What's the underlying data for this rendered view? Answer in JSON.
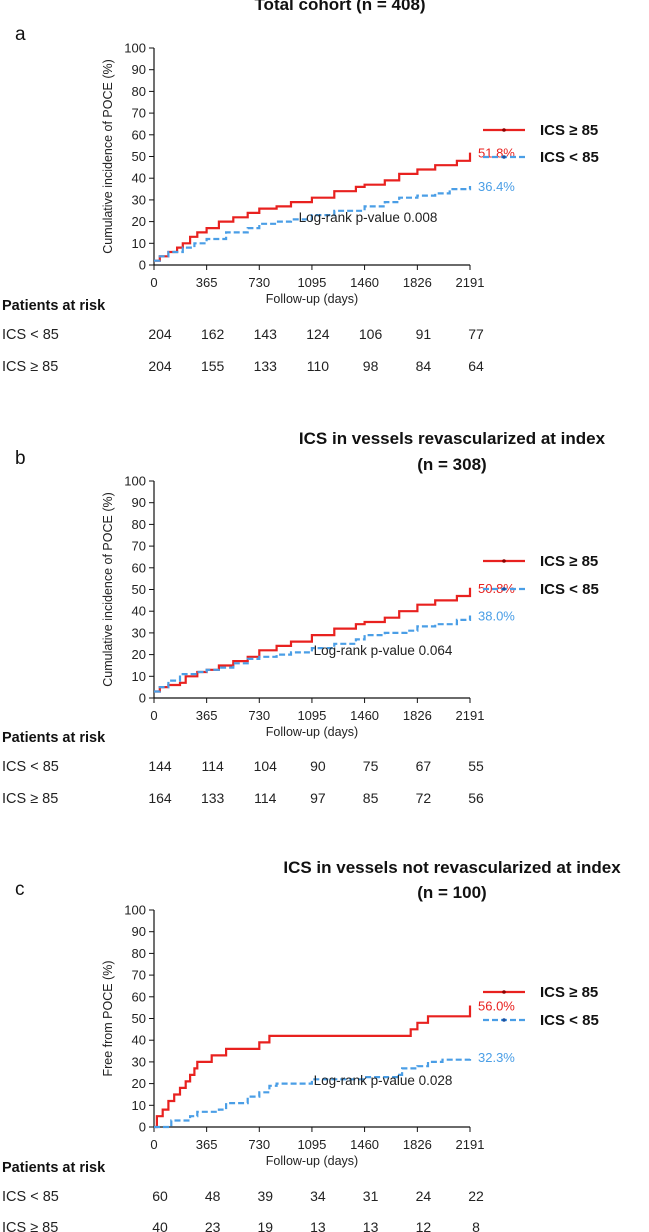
{
  "chart_data": [
    {
      "type": "line",
      "panel": "a",
      "title_lines": [
        "Total cohort (n = 408)"
      ],
      "xlabel": "Follow-up (days)",
      "ylabel": "Cumulative incidence of POCE (%)",
      "x_ticks": [
        0,
        365,
        730,
        1095,
        1460,
        1826,
        2191
      ],
      "y_ticks": [
        0,
        10,
        20,
        30,
        40,
        50,
        60,
        70,
        80,
        90,
        100
      ],
      "xlim": [
        0,
        2191
      ],
      "ylim": [
        0,
        100
      ],
      "annotation": "Log-rank p-value 0.008",
      "series": [
        {
          "name": "ICS ≥ 85",
          "color": "#e8211f",
          "dash": "solid",
          "end_label": "51.8%",
          "points": [
            [
              0,
              2
            ],
            [
              40,
              4
            ],
            [
              100,
              6
            ],
            [
              160,
              8
            ],
            [
              200,
              10
            ],
            [
              250,
              13
            ],
            [
              300,
              15
            ],
            [
              365,
              17
            ],
            [
              450,
              20
            ],
            [
              550,
              22
            ],
            [
              650,
              24
            ],
            [
              730,
              26
            ],
            [
              850,
              27
            ],
            [
              950,
              29
            ],
            [
              1095,
              31
            ],
            [
              1250,
              34
            ],
            [
              1400,
              36
            ],
            [
              1460,
              37
            ],
            [
              1600,
              39
            ],
            [
              1700,
              42
            ],
            [
              1826,
              44
            ],
            [
              1950,
              46
            ],
            [
              2100,
              48
            ],
            [
              2191,
              51.8
            ]
          ]
        },
        {
          "name": "ICS < 85",
          "color": "#4a9ee6",
          "dash": "dash",
          "end_label": "36.4%",
          "points": [
            [
              0,
              2
            ],
            [
              40,
              4
            ],
            [
              100,
              6
            ],
            [
              200,
              8
            ],
            [
              280,
              10
            ],
            [
              365,
              12
            ],
            [
              500,
              15
            ],
            [
              650,
              17
            ],
            [
              730,
              19
            ],
            [
              850,
              20
            ],
            [
              950,
              21
            ],
            [
              1095,
              23
            ],
            [
              1250,
              25
            ],
            [
              1460,
              27
            ],
            [
              1600,
              29
            ],
            [
              1700,
              31
            ],
            [
              1826,
              32
            ],
            [
              1950,
              33
            ],
            [
              2050,
              35
            ],
            [
              2191,
              36.4
            ]
          ]
        }
      ],
      "risk_table": {
        "header": "Patients at risk",
        "rows": [
          {
            "label": "ICS < 85",
            "values": [
              "204",
              "162",
              "143",
              "124",
              "106",
              "91",
              "77"
            ]
          },
          {
            "label": "ICS ≥ 85",
            "values": [
              "204",
              "155",
              "133",
              "110",
              "98",
              "84",
              "64"
            ]
          }
        ]
      }
    },
    {
      "type": "line",
      "panel": "b",
      "title_lines": [
        "ICS in vessels revascularized at index",
        "(n = 308)"
      ],
      "xlabel": "Follow-up (days)",
      "ylabel": "Cumulative incidence of POCE (%)",
      "x_ticks": [
        0,
        365,
        730,
        1095,
        1460,
        1826,
        2191
      ],
      "y_ticks": [
        0,
        10,
        20,
        30,
        40,
        50,
        60,
        70,
        80,
        90,
        100
      ],
      "xlim": [
        0,
        2191
      ],
      "ylim": [
        0,
        100
      ],
      "annotation": "Log-rank p-value 0.064",
      "series": [
        {
          "name": "ICS ≥ 85",
          "color": "#e8211f",
          "dash": "solid",
          "end_label": "50.8%",
          "points": [
            [
              0,
              3
            ],
            [
              40,
              5
            ],
            [
              100,
              6
            ],
            [
              180,
              7
            ],
            [
              220,
              10
            ],
            [
              300,
              12
            ],
            [
              365,
              13
            ],
            [
              450,
              15
            ],
            [
              550,
              17
            ],
            [
              650,
              19
            ],
            [
              730,
              22
            ],
            [
              850,
              24
            ],
            [
              950,
              26
            ],
            [
              1095,
              29
            ],
            [
              1250,
              32
            ],
            [
              1400,
              34
            ],
            [
              1460,
              35
            ],
            [
              1600,
              37
            ],
            [
              1700,
              40
            ],
            [
              1826,
              43
            ],
            [
              1950,
              45
            ],
            [
              2100,
              47
            ],
            [
              2191,
              50.8
            ]
          ]
        },
        {
          "name": "ICS < 85",
          "color": "#4a9ee6",
          "dash": "dash",
          "end_label": "38.0%",
          "points": [
            [
              0,
              3
            ],
            [
              40,
              5
            ],
            [
              100,
              8
            ],
            [
              180,
              11
            ],
            [
              300,
              12
            ],
            [
              365,
              13
            ],
            [
              450,
              14
            ],
            [
              550,
              16
            ],
            [
              650,
              18
            ],
            [
              730,
              19
            ],
            [
              850,
              20
            ],
            [
              950,
              21
            ],
            [
              1095,
              23
            ],
            [
              1250,
              25
            ],
            [
              1400,
              27
            ],
            [
              1460,
              29
            ],
            [
              1600,
              30
            ],
            [
              1750,
              31
            ],
            [
              1826,
              33
            ],
            [
              1950,
              34
            ],
            [
              2100,
              36
            ],
            [
              2191,
              38.0
            ]
          ]
        }
      ],
      "risk_table": {
        "header": "Patients at risk",
        "rows": [
          {
            "label": "ICS < 85",
            "values": [
              "144",
              "114",
              "104",
              "90",
              "75",
              "67",
              "55"
            ]
          },
          {
            "label": "ICS ≥ 85",
            "values": [
              "164",
              "133",
              "114",
              "97",
              "85",
              "72",
              "56"
            ]
          }
        ]
      }
    },
    {
      "type": "line",
      "panel": "c",
      "title_lines": [
        "ICS in vessels not revascularized at index",
        "(n = 100)"
      ],
      "xlabel": "Follow-up (days)",
      "ylabel": "Free from POCE (%)",
      "x_ticks": [
        0,
        365,
        730,
        1095,
        1460,
        1826,
        2191
      ],
      "y_ticks": [
        0,
        10,
        20,
        30,
        40,
        50,
        60,
        70,
        80,
        90,
        100
      ],
      "xlim": [
        0,
        2191
      ],
      "ylim": [
        0,
        100
      ],
      "annotation": "Log-rank p-value 0.028",
      "series": [
        {
          "name": "ICS ≥ 85",
          "color": "#e8211f",
          "dash": "solid",
          "end_label": "56.0%",
          "points": [
            [
              0,
              0
            ],
            [
              20,
              5
            ],
            [
              60,
              8
            ],
            [
              100,
              12
            ],
            [
              140,
              15
            ],
            [
              180,
              18
            ],
            [
              220,
              21
            ],
            [
              250,
              24
            ],
            [
              280,
              27
            ],
            [
              300,
              30
            ],
            [
              365,
              30
            ],
            [
              400,
              33
            ],
            [
              500,
              36
            ],
            [
              730,
              39
            ],
            [
              800,
              42
            ],
            [
              1460,
              42
            ],
            [
              1760,
              42
            ],
            [
              1780,
              45
            ],
            [
              1826,
              48
            ],
            [
              1900,
              51
            ],
            [
              2150,
              51
            ],
            [
              2191,
              56.0
            ]
          ]
        },
        {
          "name": "ICS < 85",
          "color": "#4a9ee6",
          "dash": "dash",
          "end_label": "32.3%",
          "points": [
            [
              0,
              0
            ],
            [
              120,
              3
            ],
            [
              250,
              5
            ],
            [
              300,
              7
            ],
            [
              450,
              8
            ],
            [
              500,
              11
            ],
            [
              650,
              14
            ],
            [
              730,
              16
            ],
            [
              800,
              19
            ],
            [
              850,
              20
            ],
            [
              1000,
              20
            ],
            [
              1095,
              22
            ],
            [
              1250,
              22
            ],
            [
              1460,
              23
            ],
            [
              1600,
              23
            ],
            [
              1700,
              24
            ],
            [
              1720,
              27
            ],
            [
              1826,
              28
            ],
            [
              1900,
              30
            ],
            [
              2000,
              31
            ],
            [
              2191,
              32.3
            ]
          ]
        }
      ],
      "risk_table": {
        "header": "Patients at risk",
        "rows": [
          {
            "label": "ICS < 85",
            "values": [
              "60",
              "48",
              "39",
              "34",
              "31",
              "24",
              "22"
            ]
          },
          {
            "label": "ICS ≥ 85",
            "values": [
              "40",
              "23",
              "19",
              "13",
              "13",
              "12",
              "8"
            ]
          }
        ]
      }
    }
  ]
}
